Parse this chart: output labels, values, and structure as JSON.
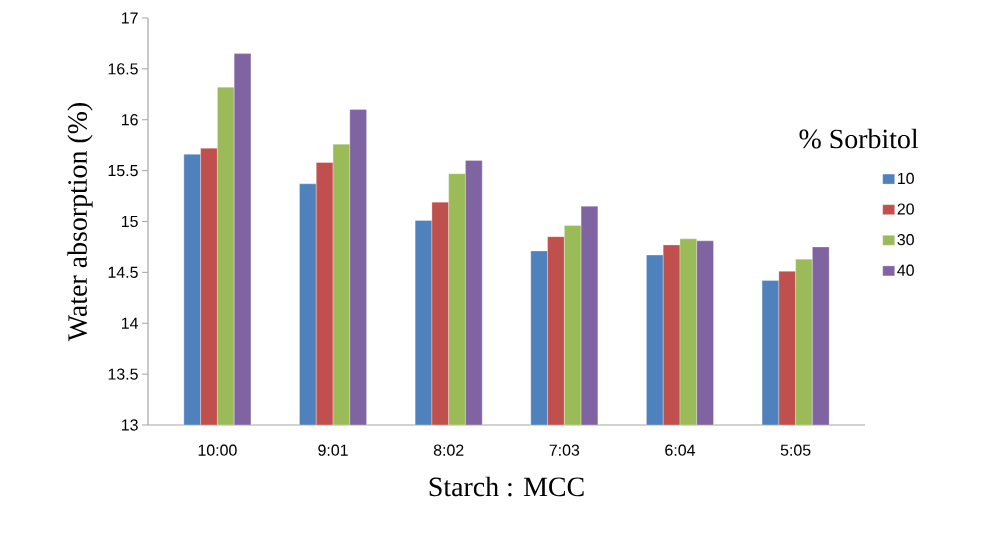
{
  "chart_data": {
    "type": "bar",
    "xlabel": "Starch : MCC",
    "ylabel": "Water absorption (%)",
    "legend_title": "% Sorbitol",
    "categories": [
      "10:00",
      "9:01",
      "8:02",
      "7:03",
      "6:04",
      "5:05"
    ],
    "series": [
      {
        "name": "10",
        "color": "#4f81bd",
        "values": [
          15.66,
          15.37,
          15.01,
          14.71,
          14.67,
          14.42
        ]
      },
      {
        "name": "20",
        "color": "#c0504d",
        "values": [
          15.72,
          15.58,
          15.19,
          14.85,
          14.77,
          14.51
        ]
      },
      {
        "name": "30",
        "color": "#9bbb59",
        "values": [
          16.32,
          15.76,
          15.47,
          14.96,
          14.83,
          14.63
        ]
      },
      {
        "name": "40",
        "color": "#8064a2",
        "values": [
          16.65,
          16.1,
          15.6,
          15.15,
          14.81,
          14.75
        ]
      }
    ],
    "ylim": [
      13,
      17
    ],
    "yticks": [
      13,
      13.5,
      14,
      14.5,
      15,
      15.5,
      16,
      16.5,
      17
    ],
    "grid": false,
    "legend": "right"
  }
}
